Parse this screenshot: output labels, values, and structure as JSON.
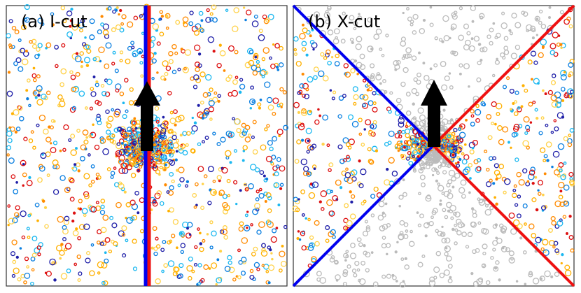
{
  "panels": [
    {
      "id": "a",
      "label": "(a) I-cut",
      "cut": "I"
    },
    {
      "id": "b",
      "label": "(b) X-cut",
      "cut": "X"
    }
  ],
  "colors": {
    "cut_left": "#0000ee",
    "cut_right": "#ee1111",
    "arrow": "#000000",
    "muted_particle": "#bbbbbb",
    "particle_palette": [
      "#1cb8f0",
      "#ffb000",
      "#ff8a00",
      "#0b7fe0",
      "#dd1010",
      "#1f1fa8",
      "#ffd24a"
    ]
  },
  "arrow": {
    "direction": "up"
  }
}
